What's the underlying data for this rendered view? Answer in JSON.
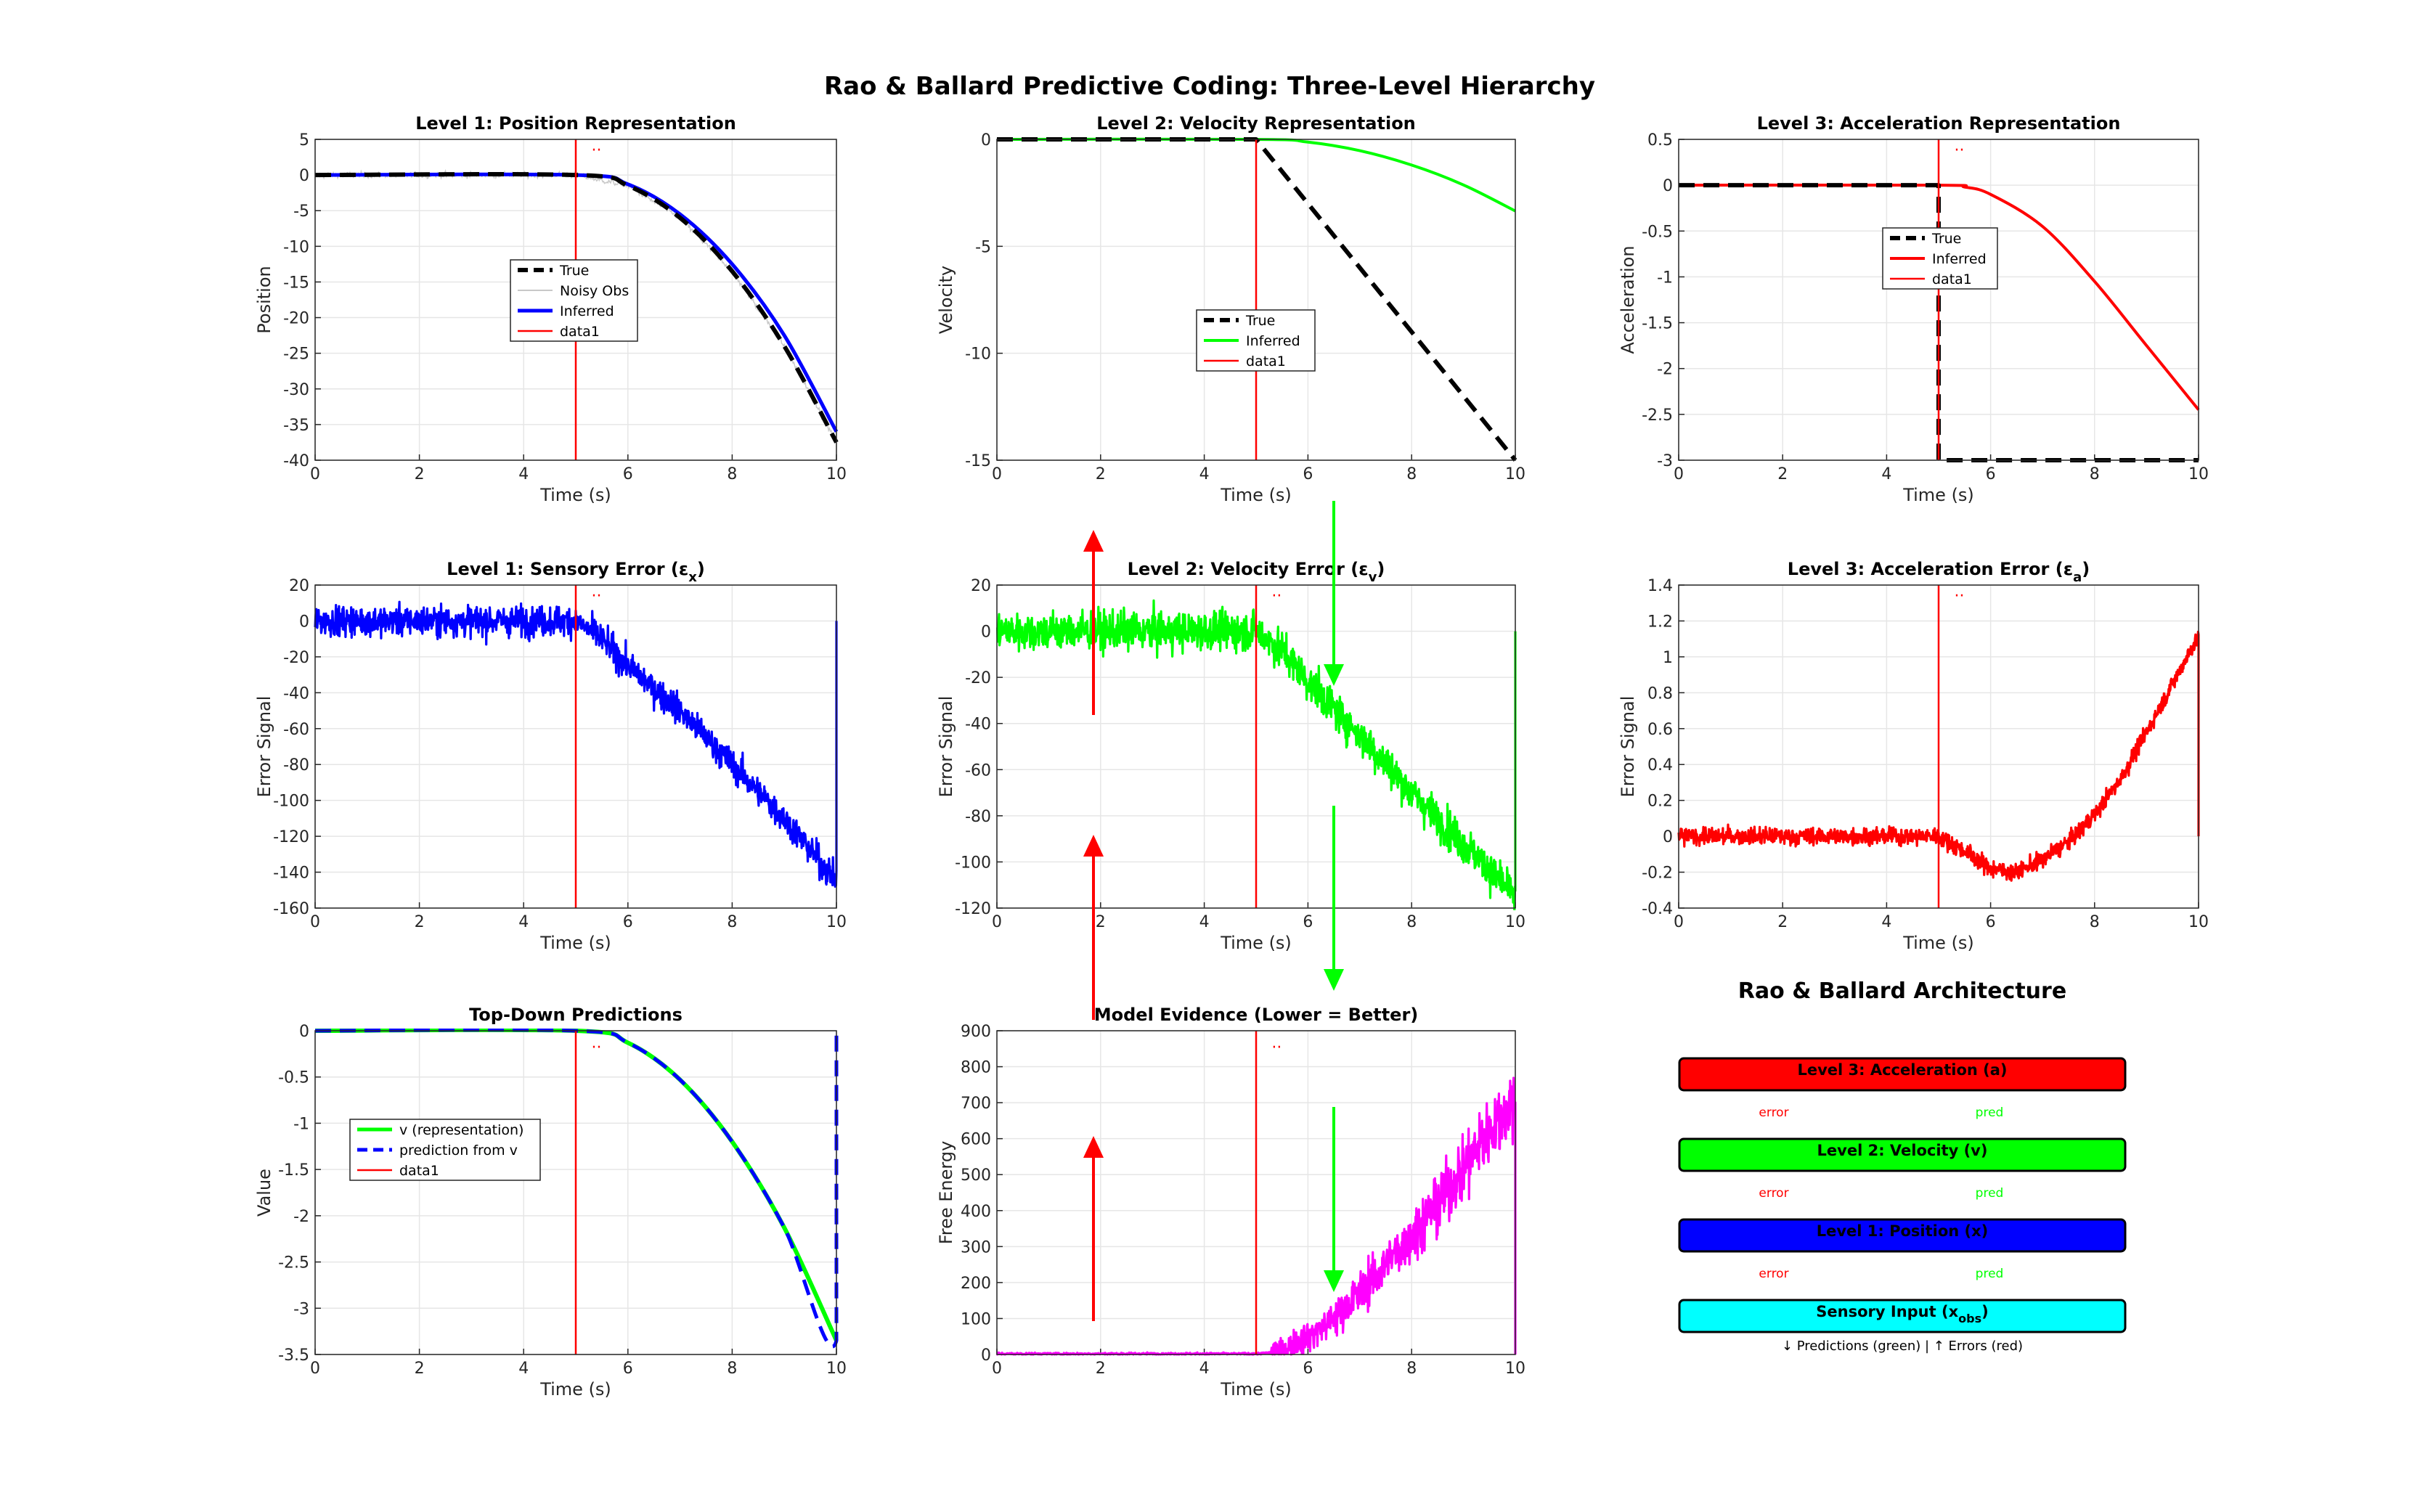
{
  "figure": {
    "title": "Rao & Ballard Predictive Coding: Three-Level Hierarchy"
  },
  "panels": [
    {
      "id": "p1",
      "title": "Level 1: Position Representation",
      "title_sub": "",
      "xlabel": "Time (s)",
      "ylabel": "Position",
      "ylim": [
        -40,
        5
      ],
      "yticks": [
        5,
        0,
        -5,
        -10,
        -15,
        -20,
        -25,
        -30,
        -35,
        -40
      ],
      "marker": "··",
      "legend": [
        "True",
        "Noisy Obs",
        "Inferred",
        "data1"
      ]
    },
    {
      "id": "p2",
      "title": "Level 2: Velocity Representation",
      "title_sub": "",
      "xlabel": "Time (s)",
      "ylabel": "Velocity",
      "ylim": [
        -15,
        0
      ],
      "yticks": [
        0,
        -5,
        -10,
        -15
      ],
      "marker": "",
      "legend": [
        "True",
        "Inferred",
        "data1"
      ]
    },
    {
      "id": "p3",
      "title": "Level 3: Acceleration Representation",
      "title_sub": "",
      "xlabel": "Time (s)",
      "ylabel": "Acceleration",
      "ylim": [
        -3,
        0.5
      ],
      "yticks": [
        0.5,
        0,
        -0.5,
        -1,
        -1.5,
        -2,
        -2.5,
        -3
      ],
      "marker": "··",
      "legend": [
        "True",
        "Inferred",
        "data1"
      ]
    },
    {
      "id": "p4",
      "title": "Level 1: Sensory Error (ε",
      "title_sub": "x",
      "xlabel": "Time (s)",
      "ylabel": "Error Signal",
      "ylim": [
        -160,
        20
      ],
      "yticks": [
        20,
        0,
        -20,
        -40,
        -60,
        -80,
        -100,
        -120,
        -140,
        -160
      ],
      "marker": "··",
      "legend": []
    },
    {
      "id": "p5",
      "title": "Level 2: Velocity Error (ε",
      "title_sub": "v",
      "xlabel": "Time (s)",
      "ylabel": "Error Signal",
      "ylim": [
        -120,
        20
      ],
      "yticks": [
        20,
        0,
        -20,
        -40,
        -60,
        -80,
        -100,
        -120
      ],
      "marker": "··",
      "legend": []
    },
    {
      "id": "p6",
      "title": "Level 3: Acceleration Error (ε",
      "title_sub": "a",
      "xlabel": "Time (s)",
      "ylabel": "Error Signal",
      "ylim": [
        -0.4,
        1.4
      ],
      "yticks": [
        1.4,
        1.2,
        1,
        0.8,
        0.6,
        0.4,
        0.2,
        0,
        -0.2,
        -0.4
      ],
      "marker": "··",
      "legend": []
    },
    {
      "id": "p7",
      "title": "Top-Down Predictions",
      "title_sub": "",
      "xlabel": "Time (s)",
      "ylabel": "Value",
      "ylim": [
        -3.5,
        0
      ],
      "yticks": [
        0,
        -0.5,
        -1,
        -1.5,
        -2,
        -2.5,
        -3,
        -3.5
      ],
      "marker": "··",
      "legend": [
        "v (representation)",
        "prediction from v",
        "data1"
      ]
    },
    {
      "id": "p8",
      "title": "Model Evidence (Lower = Better)",
      "title_sub": "",
      "xlabel": "Time (s)",
      "ylabel": "Free Energy",
      "ylim": [
        0,
        900
      ],
      "yticks": [
        900,
        800,
        700,
        600,
        500,
        400,
        300,
        200,
        100,
        0
      ],
      "marker": "··",
      "legend": []
    }
  ],
  "xticks": [
    0,
    2,
    4,
    6,
    8,
    10
  ],
  "architecture": {
    "title": "Rao & Ballard Architecture",
    "boxes": [
      {
        "label": "Level 3: Acceleration (a)",
        "sub": "",
        "tail": "",
        "color": "#ff0000"
      },
      {
        "label": "Level 2: Velocity (v)",
        "sub": "",
        "tail": "",
        "color": "#00ff00"
      },
      {
        "label": "Level 1: Position (x)",
        "sub": "",
        "tail": "",
        "color": "#0000ff"
      },
      {
        "label": "Sensory Input (x",
        "sub": "obs",
        "tail": ")",
        "color": "#00ffff"
      }
    ],
    "error_label": "error",
    "pred_label": "pred",
    "footer": "↓ Predictions (green) | ↑ Errors (red)"
  },
  "colors": {
    "error": "#ff0000",
    "prediction": "#00ff00",
    "true": "#000000",
    "inferred_position": "#0000ff",
    "inferred_velocity": "#00ff00",
    "inferred_acceleration": "#ff0000",
    "free_energy": "#ff00ff",
    "stimulus_line": "#ff0000"
  },
  "chart_data": [
    {
      "type": "line",
      "title": "Level 1: Position Representation",
      "xlabel": "Time (s)",
      "ylabel": "Position",
      "xlim": [
        0,
        10
      ],
      "ylim": [
        -40,
        5
      ],
      "grid": true,
      "legend_placement": "center-left",
      "series": [
        {
          "name": "True",
          "x": [
            0,
            5,
            6,
            7,
            8,
            9,
            10
          ],
          "values": [
            0,
            0,
            -1.5,
            -6,
            -13.5,
            -24,
            -37.5
          ]
        },
        {
          "name": "Inferred",
          "x": [
            0,
            5,
            6,
            7,
            8,
            9,
            10
          ],
          "values": [
            0,
            0,
            -1.3,
            -5.5,
            -12.5,
            -22.5,
            -36
          ]
        },
        {
          "name": "data1",
          "x": [
            5,
            5
          ],
          "values": [
            -40,
            5
          ]
        }
      ]
    },
    {
      "type": "line",
      "title": "Level 2: Velocity Representation",
      "xlabel": "Time (s)",
      "ylabel": "Velocity",
      "xlim": [
        0,
        10
      ],
      "ylim": [
        -15,
        0
      ],
      "grid": true,
      "legend_placement": "center",
      "series": [
        {
          "name": "True",
          "x": [
            0,
            5,
            10
          ],
          "values": [
            0,
            0,
            -15
          ]
        },
        {
          "name": "Inferred",
          "x": [
            0,
            5,
            6,
            7,
            8,
            9,
            10
          ],
          "values": [
            0,
            0,
            -0.13,
            -0.53,
            -1.2,
            -2.13,
            -3.35
          ]
        },
        {
          "name": "data1",
          "x": [
            5,
            5
          ],
          "values": [
            -15,
            0
          ]
        }
      ]
    },
    {
      "type": "line",
      "title": "Level 3: Acceleration Representation",
      "xlabel": "Time (s)",
      "ylabel": "Acceleration",
      "xlim": [
        0,
        10
      ],
      "ylim": [
        -3,
        0.5
      ],
      "grid": true,
      "legend_placement": "center",
      "series": [
        {
          "name": "True",
          "x": [
            0,
            5,
            5,
            10
          ],
          "values": [
            0,
            0,
            -3,
            -3
          ]
        },
        {
          "name": "Inferred",
          "x": [
            0,
            5,
            5.5,
            6,
            7,
            8,
            9,
            10
          ],
          "values": [
            0,
            0,
            -0.02,
            -0.1,
            -0.45,
            -1.05,
            -1.75,
            -2.45
          ]
        },
        {
          "name": "data1",
          "x": [
            5,
            5
          ],
          "values": [
            -3,
            0.5
          ]
        }
      ]
    },
    {
      "type": "line",
      "title": "Level 1: Sensory Error (ε_x)",
      "xlabel": "Time (s)",
      "ylabel": "Error Signal",
      "xlim": [
        0,
        10
      ],
      "ylim": [
        -160,
        20
      ],
      "grid": true,
      "series": [
        {
          "name": "ε_x",
          "x": [
            0,
            5,
            5.5,
            6,
            7,
            8,
            9,
            10,
            10
          ],
          "values": [
            0,
            0,
            -10,
            -25,
            -50,
            -80,
            -110,
            -145,
            0
          ],
          "noise": 7
        }
      ]
    },
    {
      "type": "line",
      "title": "Level 2: Velocity Error (ε_v)",
      "xlabel": "Time (s)",
      "ylabel": "Error Signal",
      "xlim": [
        0,
        10
      ],
      "ylim": [
        -120,
        20
      ],
      "grid": true,
      "series": [
        {
          "name": "ε_v",
          "x": [
            0,
            5,
            5.5,
            6,
            7,
            8,
            9,
            10,
            10
          ],
          "values": [
            0,
            0,
            -8,
            -22,
            -45,
            -70,
            -92,
            -115,
            0
          ],
          "noise": 7
        }
      ]
    },
    {
      "type": "line",
      "title": "Level 3: Acceleration Error (ε_a)",
      "xlabel": "Time (s)",
      "ylabel": "Error Signal",
      "xlim": [
        0,
        10
      ],
      "ylim": [
        -0.4,
        1.4
      ],
      "grid": true,
      "series": [
        {
          "name": "ε_a",
          "x": [
            0,
            5,
            5.5,
            6,
            6.5,
            7,
            7.5,
            8,
            8.5,
            9,
            9.5,
            10,
            10
          ],
          "values": [
            0,
            0,
            -0.08,
            -0.18,
            -0.2,
            -0.13,
            -0.03,
            0.12,
            0.32,
            0.58,
            0.85,
            1.12,
            0
          ],
          "noise": 0.04
        }
      ]
    },
    {
      "type": "line",
      "title": "Top-Down Predictions",
      "xlabel": "Time (s)",
      "ylabel": "Value",
      "xlim": [
        0,
        10
      ],
      "ylim": [
        -3.5,
        0
      ],
      "grid": true,
      "legend_placement": "center-left",
      "series": [
        {
          "name": "v (representation)",
          "x": [
            0,
            5,
            6,
            7,
            8,
            9,
            10
          ],
          "values": [
            0,
            0,
            -0.13,
            -0.53,
            -1.2,
            -2.13,
            -3.35
          ]
        },
        {
          "name": "prediction from v",
          "x": [
            0,
            5,
            6,
            7,
            8,
            9,
            10,
            10
          ],
          "values": [
            0,
            0,
            -0.13,
            -0.53,
            -1.2,
            -2.13,
            -3.35,
            0
          ]
        },
        {
          "name": "data1",
          "x": [
            5,
            5
          ],
          "values": [
            -3.5,
            0
          ]
        }
      ]
    },
    {
      "type": "line",
      "title": "Model Evidence (Lower = Better)",
      "xlabel": "Time (s)",
      "ylabel": "Free Energy",
      "xlim": [
        0,
        10
      ],
      "ylim": [
        0,
        900
      ],
      "grid": true,
      "series": [
        {
          "name": "Free Energy",
          "x": [
            0,
            5,
            5.5,
            6,
            6.5,
            7,
            7.5,
            8,
            8.5,
            9,
            9.5,
            10,
            10
          ],
          "values": [
            2,
            2,
            8,
            50,
            100,
            170,
            250,
            330,
            420,
            520,
            620,
            710,
            0
          ],
          "noise": 25
        }
      ]
    }
  ]
}
